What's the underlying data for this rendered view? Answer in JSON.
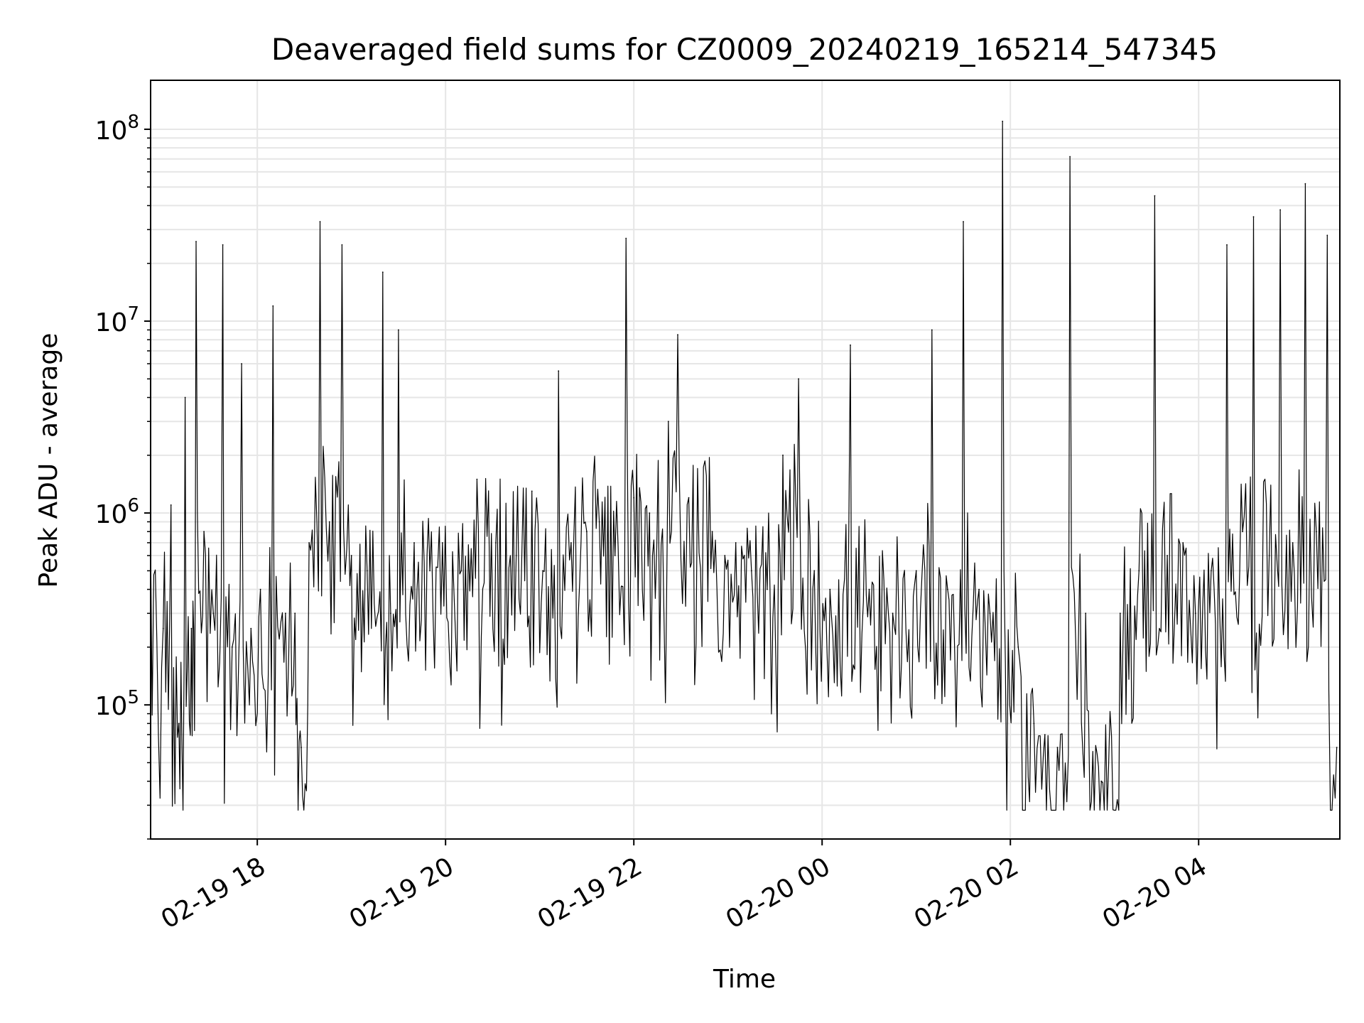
{
  "chart_data": {
    "type": "line",
    "title": "Deaveraged field sums for CZ0009_20240219_165214_547345",
    "xlabel": "Time",
    "ylabel": "Peak ADU - average",
    "x_scale": "time",
    "y_scale": "log",
    "xlim": [
      "2024-02-19T16:52",
      "2024-02-20T05:30"
    ],
    "ylim": [
      20000,
      180000000
    ],
    "x_ticks": [
      {
        "t": "2024-02-19T18:00",
        "label": "02-19 18"
      },
      {
        "t": "2024-02-19T20:00",
        "label": "02-19 20"
      },
      {
        "t": "2024-02-19T22:00",
        "label": "02-19 22"
      },
      {
        "t": "2024-02-20T00:00",
        "label": "02-20 00"
      },
      {
        "t": "2024-02-20T02:00",
        "label": "02-20 02"
      },
      {
        "t": "2024-02-20T04:00",
        "label": "02-20 04"
      }
    ],
    "y_ticks": [
      {
        "value": 100000,
        "base": "10",
        "exp": "5"
      },
      {
        "value": 1000000,
        "base": "10",
        "exp": "6"
      },
      {
        "value": 10000000,
        "base": "10",
        "exp": "7"
      },
      {
        "value": 100000000,
        "base": "10",
        "exp": "8"
      }
    ],
    "grid": true,
    "grid_color": "#e6e6e6",
    "line_color": "#000000",
    "series": [
      {
        "x": [
          "2024-02-19T16:52",
          "2024-02-19T17:00",
          "2024-02-19T17:05",
          "2024-02-19T17:10",
          "2024-02-19T17:14",
          "2024-02-19T17:18",
          "2024-02-19T17:21",
          "2024-02-19T17:26",
          "2024-02-19T17:32",
          "2024-02-19T17:38",
          "2024-02-19T17:44",
          "2024-02-19T17:50",
          "2024-02-19T17:56",
          "2024-02-19T18:02",
          "2024-02-19T18:10",
          "2024-02-19T18:18",
          "2024-02-19T18:24",
          "2024-02-19T18:28",
          "2024-02-19T18:33",
          "2024-02-19T18:40",
          "2024-02-19T18:46",
          "2024-02-19T18:54",
          "2024-02-19T19:00",
          "2024-02-19T19:10",
          "2024-02-19T19:20",
          "2024-02-19T19:25",
          "2024-02-19T19:30",
          "2024-02-19T19:40",
          "2024-02-19T19:50",
          "2024-02-19T19:58",
          "2024-02-19T20:10",
          "2024-02-19T20:20",
          "2024-02-19T20:32",
          "2024-02-19T20:45",
          "2024-02-19T20:55",
          "2024-02-19T21:02",
          "2024-02-19T21:12",
          "2024-02-19T21:20",
          "2024-02-19T21:30",
          "2024-02-19T21:38",
          "2024-02-19T21:48",
          "2024-02-19T21:55",
          "2024-02-19T22:00",
          "2024-02-19T22:10",
          "2024-02-19T22:22",
          "2024-02-19T22:28",
          "2024-02-19T22:35",
          "2024-02-19T22:50",
          "2024-02-19T22:58",
          "2024-02-19T23:05",
          "2024-02-19T23:15",
          "2024-02-19T23:25",
          "2024-02-19T23:35",
          "2024-02-19T23:45",
          "2024-02-19T23:55",
          "2024-02-20T00:05",
          "2024-02-20T00:18",
          "2024-02-20T00:30",
          "2024-02-20T00:45",
          "2024-02-20T01:00",
          "2024-02-20T01:10",
          "2024-02-20T01:20",
          "2024-02-20T01:30",
          "2024-02-20T01:40",
          "2024-02-20T01:47",
          "2024-02-20T01:55",
          "2024-02-20T02:05",
          "2024-02-20T02:15",
          "2024-02-20T02:22",
          "2024-02-20T02:30",
          "2024-02-20T02:38",
          "2024-02-20T02:48",
          "2024-02-20T02:58",
          "2024-02-20T03:10",
          "2024-02-20T03:22",
          "2024-02-20T03:32",
          "2024-02-20T03:40",
          "2024-02-20T03:50",
          "2024-02-20T03:58",
          "2024-02-20T04:08",
          "2024-02-20T04:18",
          "2024-02-20T04:28",
          "2024-02-20T04:35",
          "2024-02-20T04:45",
          "2024-02-20T04:52",
          "2024-02-20T05:00",
          "2024-02-20T05:08",
          "2024-02-20T05:15",
          "2024-02-20T05:22",
          "2024-02-20T05:28"
        ],
        "y": [
          700000,
          250000,
          1100000,
          80000,
          4000000,
          250000,
          26000000,
          800000,
          300000,
          25000000,
          200000,
          6000000,
          250000,
          400000,
          12000000,
          300000,
          300000,
          60000,
          700000,
          33000000,
          900000,
          25000000,
          600000,
          500000,
          18000000,
          300000,
          9000000,
          700000,
          500000,
          700000,
          500000,
          1500000,
          700000,
          600000,
          1300000,
          500000,
          5500000,
          700000,
          800000,
          900000,
          600000,
          27000000,
          1200000,
          1000000,
          3000000,
          8500000,
          1200000,
          800000,
          600000,
          700000,
          500000,
          400000,
          2000000,
          5000000,
          500000,
          400000,
          7500000,
          400000,
          300000,
          500000,
          9000000,
          400000,
          33000000,
          400000,
          300000,
          110000000,
          200000,
          80000,
          70000,
          60000,
          72000000,
          300000,
          40000,
          300000,
          500000,
          45000000,
          600000,
          700000,
          300000,
          500000,
          25000000,
          800000,
          35000000,
          600000,
          38000000,
          700000,
          52000000,
          800000,
          28000000,
          60000
        ]
      }
    ]
  }
}
